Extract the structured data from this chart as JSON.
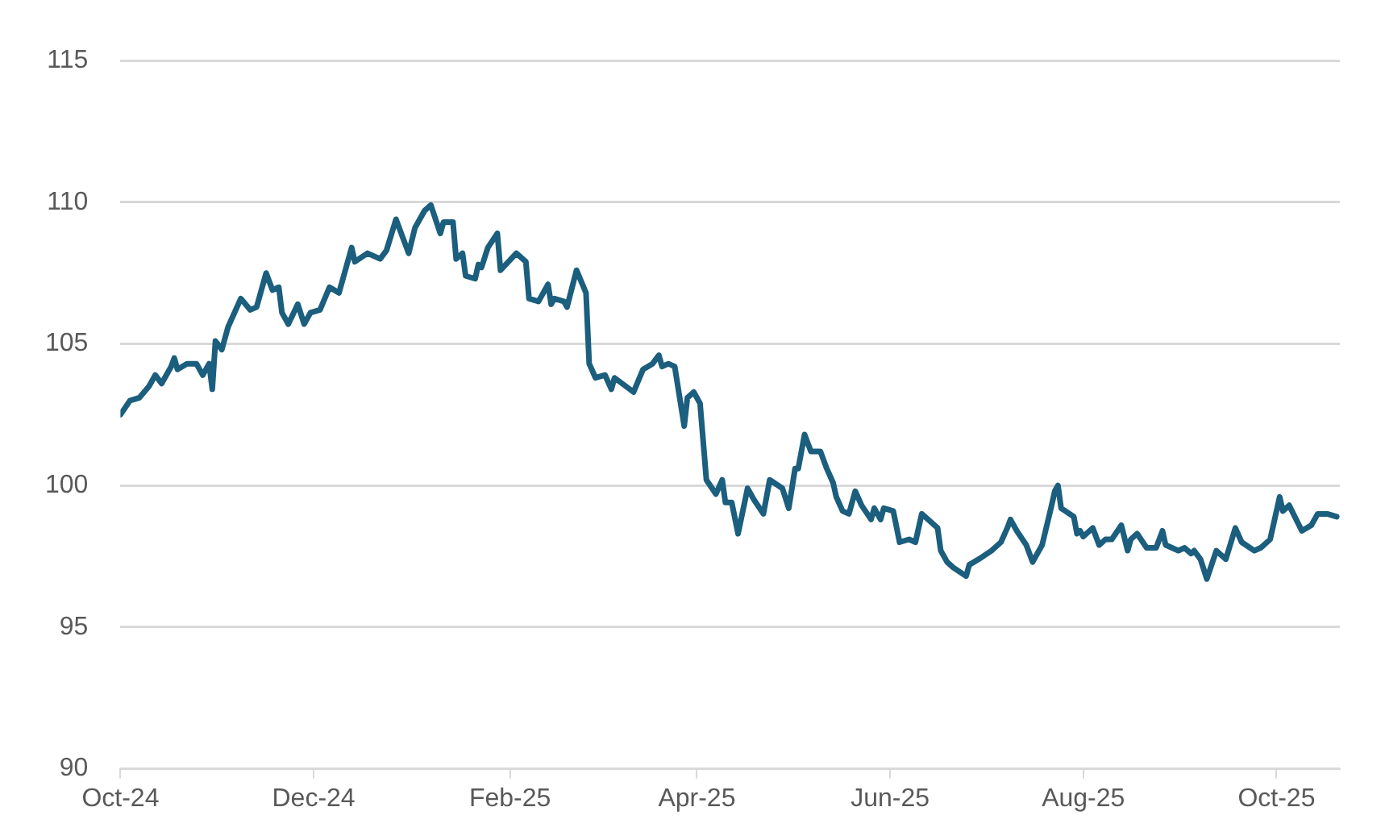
{
  "chart_data": {
    "type": "line",
    "x": [
      "2024-10-01",
      "2024-10-04",
      "2024-10-07",
      "2024-10-10",
      "2024-10-12",
      "2024-10-14",
      "2024-10-17",
      "2024-10-18",
      "2024-10-19",
      "2024-10-22",
      "2024-10-25",
      "2024-10-27",
      "2024-10-29",
      "2024-10-30",
      "2024-10-31",
      "2024-11-02",
      "2024-11-04",
      "2024-11-08",
      "2024-11-11",
      "2024-11-13",
      "2024-11-16",
      "2024-11-18",
      "2024-11-20",
      "2024-11-21",
      "2024-11-23",
      "2024-11-26",
      "2024-11-28",
      "2024-11-30",
      "2024-12-03",
      "2024-12-06",
      "2024-12-09",
      "2024-12-13",
      "2024-12-14",
      "2024-12-18",
      "2024-12-22",
      "2024-12-24",
      "2024-12-27",
      "2024-12-31",
      "2025-01-02",
      "2025-01-05",
      "2025-01-07",
      "2025-01-10",
      "2025-01-11",
      "2025-01-14",
      "2025-01-15",
      "2025-01-17",
      "2025-01-18",
      "2025-01-21",
      "2025-01-22",
      "2025-01-23",
      "2025-01-25",
      "2025-01-28",
      "2025-01-29",
      "2025-02-03",
      "2025-02-06",
      "2025-02-07",
      "2025-02-10",
      "2025-02-13",
      "2025-02-14",
      "2025-02-15",
      "2025-02-18",
      "2025-02-19",
      "2025-02-22",
      "2025-02-25",
      "2025-02-26",
      "2025-02-28",
      "2025-03-03",
      "2025-03-05",
      "2025-03-06",
      "2025-03-12",
      "2025-03-15",
      "2025-03-18",
      "2025-03-20",
      "2025-03-21",
      "2025-03-23",
      "2025-03-25",
      "2025-03-28",
      "2025-03-29",
      "2025-03-31",
      "2025-04-02",
      "2025-04-04",
      "2025-04-07",
      "2025-04-09",
      "2025-04-10",
      "2025-04-12",
      "2025-04-14",
      "2025-04-17",
      "2025-04-19",
      "2025-04-22",
      "2025-04-24",
      "2025-04-28",
      "2025-04-30",
      "2025-05-02",
      "2025-05-03",
      "2025-05-05",
      "2025-05-07",
      "2025-05-10",
      "2025-05-12",
      "2025-05-14",
      "2025-05-15",
      "2025-05-17",
      "2025-05-19",
      "2025-05-21",
      "2025-05-23",
      "2025-05-26",
      "2025-05-27",
      "2025-05-29",
      "2025-05-30",
      "2025-06-02",
      "2025-06-04",
      "2025-06-07",
      "2025-06-09",
      "2025-06-11",
      "2025-06-12",
      "2025-06-16",
      "2025-06-17",
      "2025-06-19",
      "2025-06-21",
      "2025-06-25",
      "2025-06-26",
      "2025-06-29",
      "2025-07-03",
      "2025-07-06",
      "2025-07-08",
      "2025-07-09",
      "2025-07-11",
      "2025-07-14",
      "2025-07-16",
      "2025-07-19",
      "2025-07-22",
      "2025-07-23",
      "2025-07-24",
      "2025-07-25",
      "2025-07-29",
      "2025-07-30",
      "2025-07-31",
      "2025-08-01",
      "2025-08-04",
      "2025-08-06",
      "2025-08-08",
      "2025-08-10",
      "2025-08-13",
      "2025-08-15",
      "2025-08-16",
      "2025-08-18",
      "2025-08-21",
      "2025-08-24",
      "2025-08-26",
      "2025-08-27",
      "2025-08-31",
      "2025-09-02",
      "2025-09-04",
      "2025-09-05",
      "2025-09-07",
      "2025-09-09",
      "2025-09-12",
      "2025-09-15",
      "2025-09-18",
      "2025-09-20",
      "2025-09-24",
      "2025-09-26",
      "2025-09-29",
      "2025-10-02",
      "2025-10-03",
      "2025-10-05",
      "2025-10-09",
      "2025-10-12",
      "2025-10-14",
      "2025-10-17",
      "2025-10-20"
    ],
    "series": [
      {
        "color": "#1b5e7e",
        "values": [
          102.5,
          103.0,
          103.1,
          103.5,
          103.9,
          103.6,
          104.2,
          104.5,
          104.1,
          104.3,
          104.3,
          103.9,
          104.3,
          103.4,
          105.1,
          104.8,
          105.6,
          106.6,
          106.2,
          106.3,
          107.5,
          106.9,
          107.0,
          106.1,
          105.7,
          106.4,
          105.7,
          106.1,
          106.2,
          107.0,
          106.8,
          108.4,
          107.9,
          108.2,
          108.0,
          108.3,
          109.4,
          108.2,
          109.1,
          109.7,
          109.9,
          108.9,
          109.3,
          109.3,
          108.0,
          108.2,
          107.4,
          107.3,
          107.8,
          107.7,
          108.4,
          108.9,
          107.6,
          108.2,
          107.9,
          106.6,
          106.5,
          107.1,
          106.4,
          106.6,
          106.5,
          106.3,
          107.6,
          106.8,
          104.3,
          103.8,
          103.9,
          103.4,
          103.8,
          103.3,
          104.1,
          104.3,
          104.6,
          104.2,
          104.3,
          104.2,
          102.1,
          103.1,
          103.3,
          102.9,
          100.2,
          99.7,
          100.2,
          99.4,
          99.4,
          98.3,
          99.9,
          99.5,
          99.0,
          100.2,
          99.9,
          99.2,
          100.6,
          100.6,
          101.8,
          101.2,
          101.2,
          100.6,
          100.1,
          99.6,
          99.1,
          99.0,
          99.8,
          99.3,
          98.8,
          99.2,
          98.8,
          99.2,
          99.1,
          98.0,
          98.1,
          98.0,
          99.0,
          98.9,
          98.5,
          97.7,
          97.3,
          97.1,
          96.8,
          97.2,
          97.4,
          97.7,
          98.0,
          98.5,
          98.8,
          98.4,
          97.9,
          97.3,
          97.9,
          99.3,
          99.8,
          100.0,
          99.2,
          98.9,
          98.3,
          98.4,
          98.2,
          98.5,
          97.9,
          98.1,
          98.1,
          98.6,
          97.7,
          98.1,
          98.3,
          97.8,
          97.8,
          98.4,
          97.9,
          97.7,
          97.8,
          97.6,
          97.7,
          97.4,
          96.7,
          97.7,
          97.4,
          98.5,
          98.0,
          97.7,
          97.8,
          98.1,
          99.6,
          99.1,
          99.3,
          98.4,
          98.6,
          99.0,
          99.0,
          98.9
        ]
      }
    ],
    "xlim": [
      "2024-10-01",
      "2025-10-21"
    ],
    "xticks": [
      {
        "value": "2024-10-01",
        "label": "Oct-24"
      },
      {
        "value": "2024-12-01",
        "label": "Dec-24"
      },
      {
        "value": "2025-02-01",
        "label": "Feb-25"
      },
      {
        "value": "2025-04-01",
        "label": "Apr-25"
      },
      {
        "value": "2025-06-01",
        "label": "Jun-25"
      },
      {
        "value": "2025-08-01",
        "label": "Aug-25"
      },
      {
        "value": "2025-10-01",
        "label": "Oct-25"
      }
    ],
    "ylim": [
      90,
      115
    ],
    "yticks": [
      90,
      95,
      100,
      105,
      110,
      115
    ],
    "grid": "y",
    "marker": "none",
    "line_style": "solid"
  }
}
